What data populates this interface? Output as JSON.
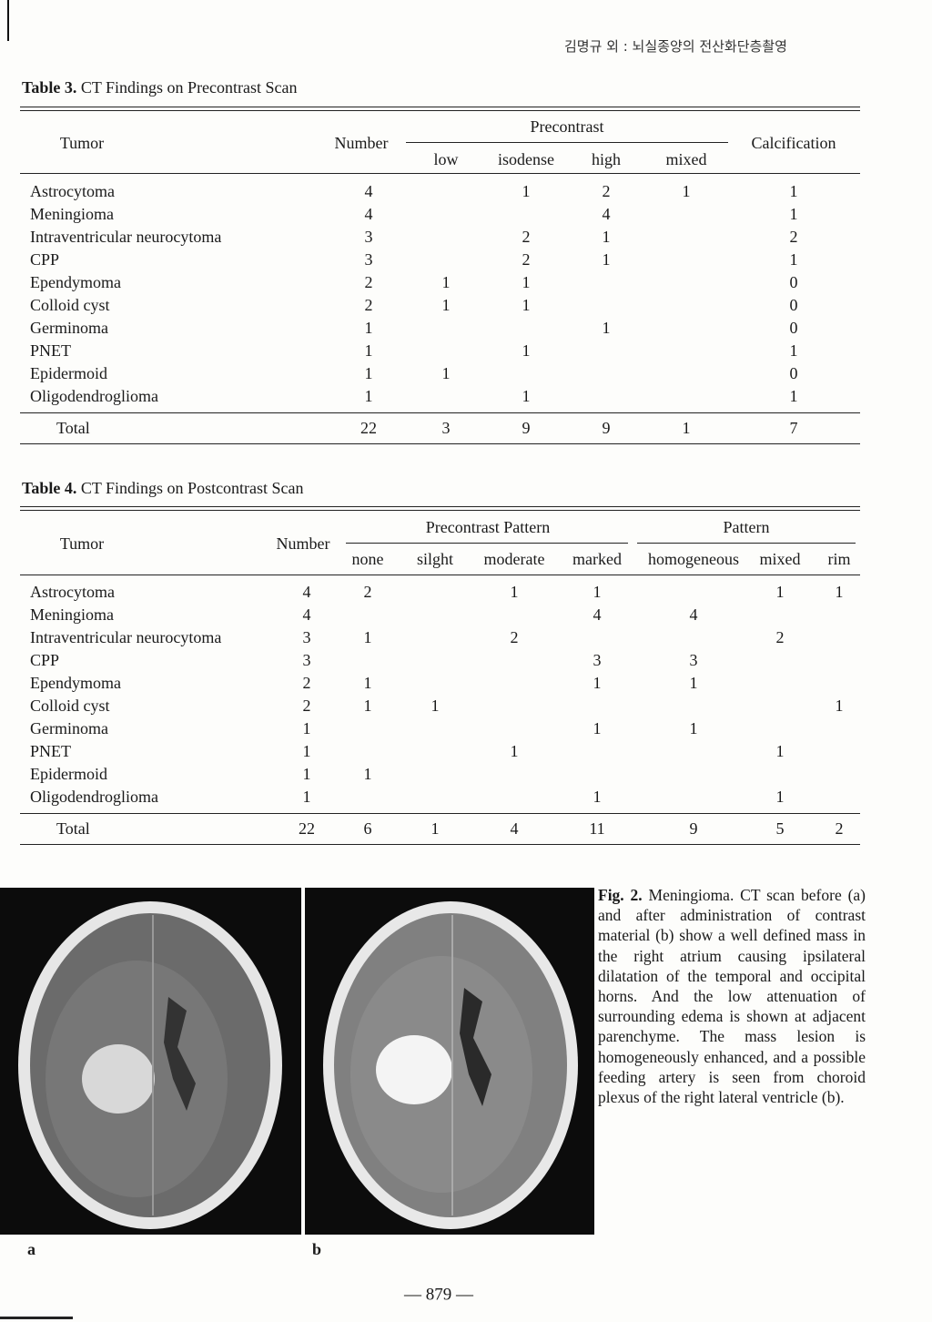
{
  "header": "김명규 외 : 뇌실종양의 전산화단층촬영",
  "table3": {
    "label": "Table 3.",
    "title": "CT Findings on Precontrast Scan",
    "col_tumor": "Tumor",
    "col_number": "Number",
    "groups": [
      {
        "name": "Precontrast",
        "subcols": [
          "low",
          "isodense",
          "high",
          "mixed"
        ]
      }
    ],
    "col_calcification": "Calcification",
    "rows": [
      {
        "tumor": "Astrocytoma",
        "values": [
          4,
          null,
          1,
          2,
          1,
          1
        ]
      },
      {
        "tumor": "Meningioma",
        "values": [
          4,
          null,
          null,
          4,
          null,
          1
        ]
      },
      {
        "tumor": "Intraventricular neurocytoma",
        "values": [
          3,
          null,
          2,
          1,
          null,
          2
        ]
      },
      {
        "tumor": "CPP",
        "values": [
          3,
          null,
          2,
          1,
          null,
          1
        ]
      },
      {
        "tumor": "Ependymoma",
        "values": [
          2,
          1,
          1,
          null,
          null,
          0
        ]
      },
      {
        "tumor": "Colloid cyst",
        "values": [
          2,
          1,
          1,
          null,
          null,
          0
        ]
      },
      {
        "tumor": "Germinoma",
        "values": [
          1,
          null,
          null,
          1,
          null,
          0
        ]
      },
      {
        "tumor": "PNET",
        "values": [
          1,
          null,
          1,
          null,
          null,
          1
        ]
      },
      {
        "tumor": "Epidermoid",
        "values": [
          1,
          1,
          null,
          null,
          null,
          0
        ]
      },
      {
        "tumor": "Oligodendroglioma",
        "values": [
          1,
          null,
          1,
          null,
          null,
          1
        ]
      }
    ],
    "total": {
      "label": "Total",
      "values": [
        22,
        3,
        9,
        9,
        1,
        7
      ]
    }
  },
  "table4": {
    "label": "Table 4.",
    "title": "CT Findings on Postcontrast Scan",
    "col_tumor": "Tumor",
    "col_number": "Number",
    "groups": [
      {
        "name": "Precontrast Pattern",
        "subcols": [
          "none",
          "silght",
          "moderate",
          "marked"
        ]
      },
      {
        "name": "Pattern",
        "subcols": [
          "homogeneous",
          "mixed",
          "rim"
        ]
      }
    ],
    "rows": [
      {
        "tumor": "Astrocytoma",
        "values": [
          4,
          2,
          null,
          1,
          1,
          null,
          1,
          1
        ]
      },
      {
        "tumor": "Meningioma",
        "values": [
          4,
          null,
          null,
          null,
          4,
          4,
          null,
          null
        ]
      },
      {
        "tumor": "Intraventricular neurocytoma",
        "values": [
          3,
          1,
          null,
          2,
          null,
          null,
          2,
          null
        ]
      },
      {
        "tumor": "CPP",
        "values": [
          3,
          null,
          null,
          null,
          3,
          3,
          null,
          null
        ]
      },
      {
        "tumor": "Ependymoma",
        "values": [
          2,
          1,
          null,
          null,
          1,
          1,
          null,
          null
        ]
      },
      {
        "tumor": "Colloid cyst",
        "values": [
          2,
          1,
          1,
          null,
          null,
          null,
          null,
          1
        ]
      },
      {
        "tumor": "Germinoma",
        "values": [
          1,
          null,
          null,
          null,
          1,
          1,
          null,
          null
        ]
      },
      {
        "tumor": "PNET",
        "values": [
          1,
          null,
          null,
          1,
          null,
          null,
          1,
          null
        ]
      },
      {
        "tumor": "Epidermoid",
        "values": [
          1,
          1,
          null,
          null,
          null,
          null,
          null,
          null
        ]
      },
      {
        "tumor": "Oligodendroglioma",
        "values": [
          1,
          null,
          null,
          null,
          1,
          null,
          1,
          null
        ]
      }
    ],
    "total": {
      "label": "Total",
      "values": [
        22,
        6,
        1,
        4,
        11,
        9,
        5,
        2
      ]
    }
  },
  "figure": {
    "label": "Fig. 2.",
    "caption": "Meningioma. CT scan before (a) and after administration of contrast material (b) show a well defined mass in the right atrium causing ipsilateral dilatation of the temporal and occipital horns. And the low attenuation of surrounding edema is shown at adjacent parenchyme. The mass lesion is homogeneously enhanced, and a possible feeding artery is seen from choroid plexus of the right lateral ventricle (b).",
    "panels": [
      "a",
      "b"
    ]
  },
  "page_number": "— 879 —"
}
